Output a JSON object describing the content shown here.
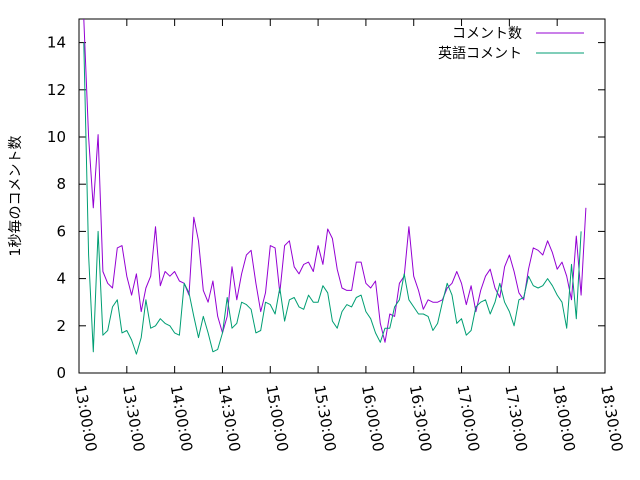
{
  "chart_data": {
    "type": "line",
    "ylabel": "1秒毎のコメント数",
    "xlabel": "",
    "ylim": [
      0,
      15
    ],
    "y_ticks": [
      "0",
      "2",
      "4",
      "6",
      "8",
      "10",
      "12",
      "14"
    ],
    "xlim": [
      "13:00:00",
      "18:30:00"
    ],
    "x_ticks": [
      "13:00:00",
      "13:30:00",
      "14:00:00",
      "14:30:00",
      "15:00:00",
      "15:30:00",
      "16:00:00",
      "16:30:00",
      "17:00:00",
      "17:30:00",
      "18:00:00",
      "18:30:00"
    ],
    "legend_position": "top-right",
    "grid": false,
    "x_minutes_step": 3,
    "series": [
      {
        "name": "コメント数",
        "color": "#9400d3",
        "start": "13:03:00",
        "values": [
          15.0,
          10.0,
          7.0,
          10.1,
          4.3,
          3.8,
          3.6,
          5.3,
          5.4,
          4.1,
          3.3,
          4.2,
          2.6,
          3.6,
          4.1,
          6.2,
          3.7,
          4.3,
          4.1,
          4.3,
          3.9,
          3.8,
          3.3,
          6.6,
          5.6,
          3.5,
          3.0,
          3.9,
          2.4,
          1.7,
          2.4,
          4.5,
          3.1,
          4.2,
          5.0,
          5.2,
          3.8,
          2.6,
          3.4,
          5.4,
          5.3,
          3.4,
          5.4,
          5.6,
          4.5,
          4.2,
          4.6,
          4.7,
          4.3,
          5.4,
          4.6,
          6.1,
          5.7,
          4.4,
          3.6,
          3.5,
          3.5,
          4.7,
          4.7,
          3.8,
          3.6,
          3.9,
          2.1,
          1.3,
          2.5,
          2.4,
          3.8,
          4.1,
          6.2,
          4.1,
          3.5,
          2.7,
          3.1,
          3.0,
          3.0,
          3.1,
          3.6,
          3.8,
          4.3,
          3.8,
          2.9,
          3.7,
          2.6,
          3.5,
          4.1,
          4.4,
          3.6,
          3.2,
          4.5,
          5.0,
          4.3,
          3.4,
          3.1,
          4.4,
          5.3,
          5.2,
          5.0,
          5.6,
          5.1,
          4.4,
          4.7,
          4.1,
          3.1,
          5.8,
          3.3,
          7.0
        ]
      },
      {
        "name": "英語コメント",
        "color": "#009e73",
        "start": "13:03:00",
        "values": [
          14.0,
          5.0,
          0.9,
          6.0,
          1.6,
          1.8,
          2.8,
          3.1,
          1.7,
          1.8,
          1.4,
          0.8,
          1.5,
          3.1,
          1.9,
          2.0,
          2.3,
          2.1,
          2.0,
          1.7,
          1.6,
          3.8,
          3.4,
          2.4,
          1.5,
          2.4,
          1.7,
          0.9,
          1.0,
          1.7,
          3.2,
          1.9,
          2.1,
          3.0,
          2.9,
          2.7,
          1.7,
          1.8,
          3.0,
          2.9,
          2.5,
          3.6,
          2.2,
          3.1,
          3.2,
          2.8,
          2.7,
          3.3,
          3.0,
          3.0,
          3.7,
          3.4,
          2.2,
          1.9,
          2.6,
          2.9,
          2.8,
          3.2,
          3.3,
          2.6,
          2.3,
          1.7,
          1.3,
          1.9,
          1.9,
          2.8,
          3.1,
          4.2,
          3.1,
          2.8,
          2.5,
          2.5,
          2.4,
          1.8,
          2.1,
          3.0,
          3.8,
          3.3,
          2.1,
          2.3,
          1.6,
          1.8,
          2.8,
          3.0,
          3.1,
          2.5,
          3.0,
          3.8,
          3.0,
          2.6,
          2.0,
          3.1,
          3.2,
          4.1,
          3.7,
          3.6,
          3.7,
          4.0,
          3.7,
          3.3,
          3.0,
          1.9,
          4.6,
          2.3,
          6.0
        ]
      }
    ]
  }
}
